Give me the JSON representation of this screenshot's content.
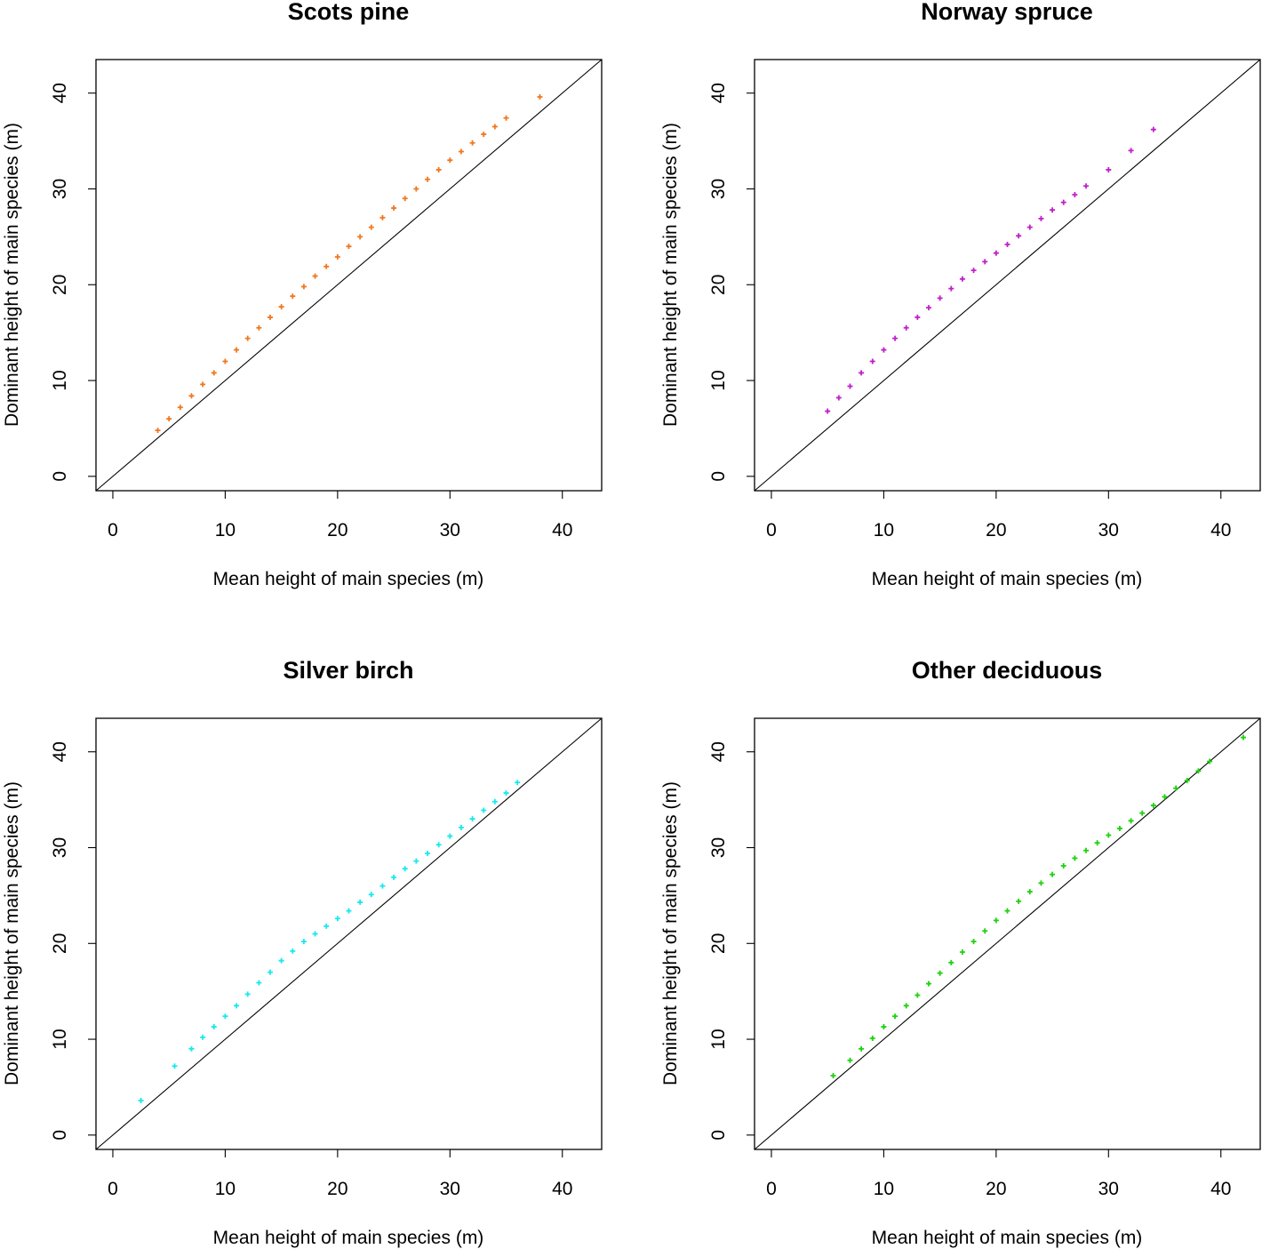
{
  "chart_data": [
    {
      "type": "scatter",
      "title": "Scots pine",
      "xlabel": "Mean height of main species (m)",
      "ylabel": "Dominant height of main species (m)",
      "xlim": [
        -1.5,
        43.5
      ],
      "ylim": [
        -1.5,
        43.5
      ],
      "xticks": [
        "0",
        "10",
        "20",
        "30",
        "40"
      ],
      "yticks": [
        "0",
        "10",
        "20",
        "30",
        "40"
      ],
      "reference_line": "y = x",
      "color": "#F07820",
      "series": [
        {
          "x": [
            4.0,
            5.0,
            6.0,
            7.0,
            8.0,
            9.0,
            10.0,
            11.0,
            12.0,
            13.0,
            14.0,
            15.0,
            16.0,
            17.0,
            18.0,
            19.0,
            20.0,
            21.0,
            22.0,
            23.0,
            24.0,
            25.0,
            26.0,
            27.0,
            28.0,
            29.0,
            30.0,
            31.0,
            32.0,
            33.0,
            34.0,
            35.0,
            38.0
          ],
          "y": [
            4.8,
            6.0,
            7.2,
            8.4,
            9.6,
            10.8,
            12.0,
            13.2,
            14.4,
            15.5,
            16.6,
            17.7,
            18.8,
            19.8,
            20.9,
            21.9,
            22.9,
            24.0,
            25.0,
            26.0,
            27.0,
            28.0,
            29.0,
            30.0,
            31.0,
            32.0,
            33.0,
            33.9,
            34.8,
            35.7,
            36.5,
            37.4,
            39.6
          ]
        }
      ]
    },
    {
      "type": "scatter",
      "title": "Norway spruce",
      "xlabel": "Mean height of main species (m)",
      "ylabel": "Dominant height of main species (m)",
      "xlim": [
        -1.5,
        43.5
      ],
      "ylim": [
        -1.5,
        43.5
      ],
      "xticks": [
        "0",
        "10",
        "20",
        "30",
        "40"
      ],
      "yticks": [
        "0",
        "10",
        "20",
        "30",
        "40"
      ],
      "reference_line": "y = x",
      "color": "#C020C8",
      "series": [
        {
          "x": [
            5.0,
            6.0,
            7.0,
            8.0,
            9.0,
            10.0,
            11.0,
            12.0,
            13.0,
            14.0,
            15.0,
            16.0,
            17.0,
            18.0,
            19.0,
            20.0,
            21.0,
            22.0,
            23.0,
            24.0,
            25.0,
            26.0,
            27.0,
            28.0,
            30.0,
            32.0,
            34.0
          ],
          "y": [
            6.8,
            8.2,
            9.4,
            10.8,
            12.0,
            13.2,
            14.4,
            15.5,
            16.6,
            17.6,
            18.6,
            19.6,
            20.6,
            21.5,
            22.4,
            23.3,
            24.2,
            25.1,
            26.0,
            26.9,
            27.8,
            28.6,
            29.4,
            30.3,
            32.0,
            34.0,
            36.2
          ]
        }
      ]
    },
    {
      "type": "scatter",
      "title": "Silver birch",
      "xlabel": "Mean height of main species (m)",
      "ylabel": "Dominant height of main species (m)",
      "xlim": [
        -1.5,
        43.5
      ],
      "ylim": [
        -1.5,
        43.5
      ],
      "xticks": [
        "0",
        "10",
        "20",
        "30",
        "40"
      ],
      "yticks": [
        "0",
        "10",
        "20",
        "30",
        "40"
      ],
      "reference_line": "y = x",
      "color": "#18E8F0",
      "series": [
        {
          "x": [
            2.5,
            5.5,
            7.0,
            8.0,
            9.0,
            10.0,
            11.0,
            12.0,
            13.0,
            14.0,
            15.0,
            16.0,
            17.0,
            18.0,
            19.0,
            20.0,
            21.0,
            22.0,
            23.0,
            24.0,
            25.0,
            26.0,
            27.0,
            28.0,
            29.0,
            30.0,
            31.0,
            32.0,
            33.0,
            34.0,
            35.0,
            36.0
          ],
          "y": [
            3.6,
            7.2,
            9.0,
            10.2,
            11.3,
            12.4,
            13.5,
            14.7,
            15.9,
            17.0,
            18.2,
            19.2,
            20.2,
            21.0,
            21.8,
            22.6,
            23.4,
            24.3,
            25.1,
            26.0,
            26.9,
            27.8,
            28.6,
            29.4,
            30.3,
            31.2,
            32.1,
            33.0,
            33.9,
            34.8,
            35.7,
            36.8
          ]
        }
      ]
    },
    {
      "type": "scatter",
      "title": "Other deciduous",
      "xlabel": "Mean height of main species (m)",
      "ylabel": "Dominant height of main species (m)",
      "xlim": [
        -1.5,
        43.5
      ],
      "ylim": [
        -1.5,
        43.5
      ],
      "xticks": [
        "0",
        "10",
        "20",
        "30",
        "40"
      ],
      "yticks": [
        "0",
        "10",
        "20",
        "30",
        "40"
      ],
      "reference_line": "y = x",
      "color": "#20D010",
      "series": [
        {
          "x": [
            5.5,
            7.0,
            8.0,
            9.0,
            10.0,
            11.0,
            12.0,
            13.0,
            14.0,
            15.0,
            16.0,
            17.0,
            18.0,
            19.0,
            20.0,
            21.0,
            22.0,
            23.0,
            24.0,
            25.0,
            26.0,
            27.0,
            28.0,
            29.0,
            30.0,
            31.0,
            32.0,
            33.0,
            34.0,
            35.0,
            36.0,
            37.0,
            38.0,
            39.0,
            42.0
          ],
          "y": [
            6.2,
            7.8,
            9.0,
            10.1,
            11.3,
            12.4,
            13.5,
            14.6,
            15.8,
            16.9,
            18.0,
            19.1,
            20.2,
            21.3,
            22.4,
            23.4,
            24.4,
            25.4,
            26.3,
            27.2,
            28.1,
            28.9,
            29.7,
            30.5,
            31.3,
            32.0,
            32.8,
            33.6,
            34.4,
            35.3,
            36.2,
            37.0,
            38.0,
            39.0,
            41.5
          ]
        }
      ]
    }
  ]
}
